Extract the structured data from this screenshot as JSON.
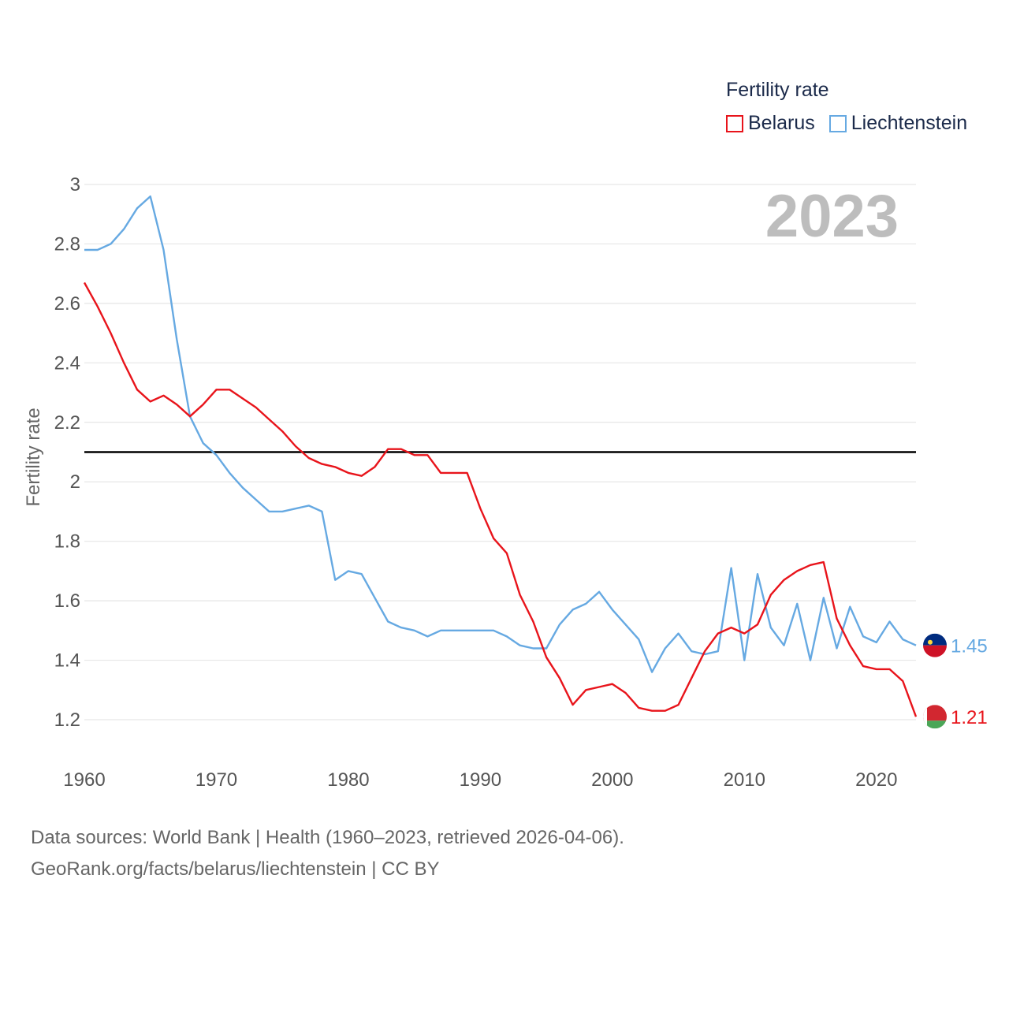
{
  "legend": {
    "title": "Fertility rate",
    "items": [
      {
        "label": "Belarus",
        "color": "#e8141b"
      },
      {
        "label": "Liechtenstein",
        "color": "#66a9e2"
      }
    ]
  },
  "footer": {
    "line1": "Data sources: World Bank | Health (1960–2023, retrieved 2026-04-06).",
    "line2": "GeoRank.org/facts/belarus/liechtenstein | CC BY"
  },
  "chart_data": {
    "type": "line",
    "title": "Fertility rate",
    "year_label": "2023",
    "xlabel": "",
    "ylabel": "Fertility rate",
    "xlim": [
      1960,
      2023
    ],
    "ylim": [
      1.1,
      3.0
    ],
    "x_ticks": [
      1960,
      1970,
      1980,
      1990,
      2000,
      2010,
      2020
    ],
    "y_ticks": [
      1.2,
      1.4,
      1.6,
      1.8,
      2,
      2.2,
      2.4,
      2.6,
      2.8,
      3
    ],
    "grid": true,
    "reference_line": 2.1,
    "x": [
      1960,
      1961,
      1962,
      1963,
      1964,
      1965,
      1966,
      1967,
      1968,
      1969,
      1970,
      1971,
      1972,
      1973,
      1974,
      1975,
      1976,
      1977,
      1978,
      1979,
      1980,
      1981,
      1982,
      1983,
      1984,
      1985,
      1986,
      1987,
      1988,
      1989,
      1990,
      1991,
      1992,
      1993,
      1994,
      1995,
      1996,
      1997,
      1998,
      1999,
      2000,
      2001,
      2002,
      2003,
      2004,
      2005,
      2006,
      2007,
      2008,
      2009,
      2010,
      2011,
      2012,
      2013,
      2014,
      2015,
      2016,
      2017,
      2018,
      2019,
      2020,
      2021,
      2022,
      2023
    ],
    "series": [
      {
        "name": "Belarus",
        "color": "#e8141b",
        "end_label": "1.21",
        "values": [
          2.67,
          2.59,
          2.5,
          2.4,
          2.31,
          2.27,
          2.29,
          2.26,
          2.22,
          2.26,
          2.31,
          2.31,
          2.28,
          2.25,
          2.21,
          2.17,
          2.12,
          2.08,
          2.06,
          2.05,
          2.03,
          2.02,
          2.05,
          2.11,
          2.11,
          2.09,
          2.09,
          2.03,
          2.03,
          2.03,
          1.91,
          1.81,
          1.76,
          1.62,
          1.53,
          1.41,
          1.34,
          1.25,
          1.3,
          1.31,
          1.32,
          1.29,
          1.24,
          1.23,
          1.23,
          1.25,
          1.34,
          1.43,
          1.49,
          1.51,
          1.49,
          1.52,
          1.62,
          1.67,
          1.7,
          1.72,
          1.73,
          1.54,
          1.45,
          1.38,
          1.37,
          1.37,
          1.33,
          1.21
        ]
      },
      {
        "name": "Liechtenstein",
        "color": "#66a9e2",
        "end_label": "1.45",
        "values": [
          2.78,
          2.78,
          2.8,
          2.85,
          2.92,
          2.96,
          2.78,
          2.48,
          2.22,
          2.13,
          2.09,
          2.03,
          1.98,
          1.94,
          1.9,
          1.9,
          1.91,
          1.92,
          1.9,
          1.67,
          1.7,
          1.69,
          1.61,
          1.53,
          1.51,
          1.5,
          1.48,
          1.5,
          1.5,
          1.5,
          1.5,
          1.5,
          1.48,
          1.45,
          1.44,
          1.44,
          1.52,
          1.57,
          1.59,
          1.63,
          1.57,
          1.52,
          1.47,
          1.36,
          1.44,
          1.49,
          1.43,
          1.42,
          1.43,
          1.71,
          1.4,
          1.69,
          1.51,
          1.45,
          1.59,
          1.4,
          1.61,
          1.44,
          1.58,
          1.48,
          1.46,
          1.53,
          1.47,
          1.45
        ]
      }
    ]
  }
}
